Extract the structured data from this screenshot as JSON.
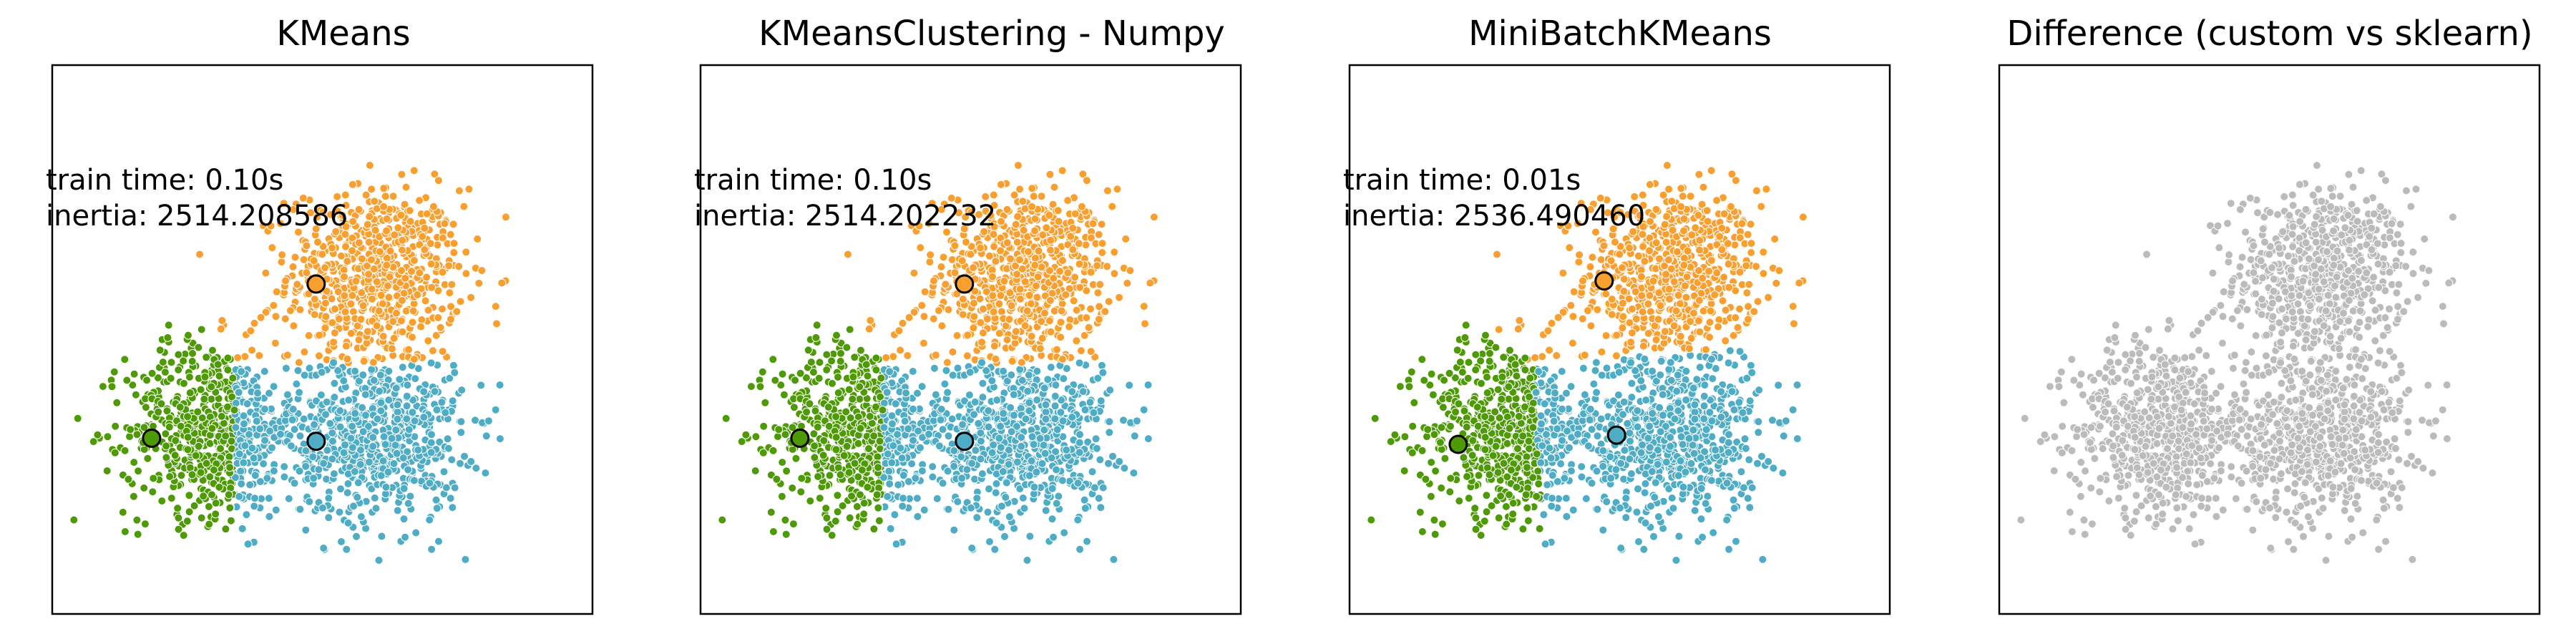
{
  "figure": {
    "panels": [
      {
        "title": "KMeans",
        "train_time": "train time: 0.10s",
        "inertia": "inertia: 2514.208586"
      },
      {
        "title": "KMeansClustering - Numpy",
        "train_time": "train time: 0.10s",
        "inertia": "inertia: 2514.202232"
      },
      {
        "title": "MiniBatchKMeans",
        "train_time": "train time: 0.01s",
        "inertia": "inertia: 2536.490460"
      },
      {
        "title": "Difference (custom vs sklearn)",
        "train_time": "",
        "inertia": ""
      }
    ]
  },
  "chart_data": {
    "type": "scatter",
    "grid": false,
    "xlim": [
      -4.2,
      4.5
    ],
    "ylim": [
      -3.8,
      5.1
    ],
    "colors": {
      "cluster_orange": "#f89f2f",
      "cluster_blue": "#4eacc5",
      "cluster_green": "#4e9a06",
      "difference": "#bbbbbb",
      "center_edge": "#000000"
    },
    "true_centers": [
      {
        "x": 1.0,
        "y": 1.7
      },
      {
        "x": -1.6,
        "y": -0.8
      },
      {
        "x": 1.0,
        "y": -0.9
      }
    ],
    "points_per_cluster": 700,
    "cluster_std": 0.7,
    "panels": [
      {
        "title": "KMeans",
        "centers": [
          {
            "label": "orange",
            "x": 0.05,
            "y": 1.55
          },
          {
            "label": "green",
            "x": -2.6,
            "y": -0.95
          },
          {
            "label": "blue",
            "x": 0.05,
            "y": -1.0
          }
        ]
      },
      {
        "title": "KMeansClustering - Numpy",
        "centers": [
          {
            "label": "orange",
            "x": 0.05,
            "y": 1.55
          },
          {
            "label": "green",
            "x": -2.6,
            "y": -0.95
          },
          {
            "label": "blue",
            "x": 0.05,
            "y": -1.0
          }
        ]
      },
      {
        "title": "MiniBatchKMeans",
        "centers": [
          {
            "label": "orange",
            "x": -0.1,
            "y": 1.6
          },
          {
            "label": "green",
            "x": -2.45,
            "y": -1.05
          },
          {
            "label": "blue",
            "x": 0.1,
            "y": -0.9
          }
        ]
      },
      {
        "title": "Difference (custom vs sklearn)",
        "centers": []
      }
    ]
  }
}
